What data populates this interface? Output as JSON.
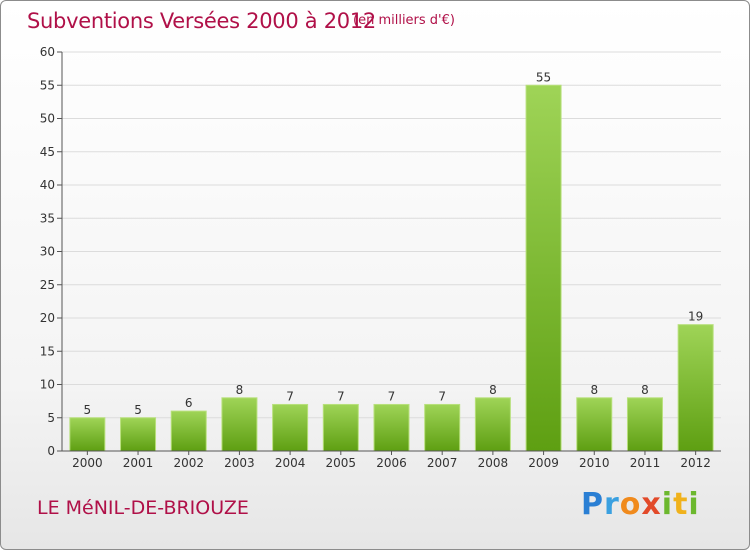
{
  "header": {
    "title": "Subventions Versées 2000 à 2012",
    "subtitle": "(en milliers d'€)"
  },
  "footer": {
    "place": "LE MéNIL-DE-BRIOUZE",
    "logo_text": "Proxiti"
  },
  "colors": {
    "bar_top": "#9fd457",
    "bar_bottom": "#5e9f12",
    "title": "#b01048"
  },
  "chart_data": {
    "type": "bar",
    "title": "Subventions Versées 2000 à 2012",
    "subtitle": "(en milliers d'€)",
    "xlabel": "",
    "ylabel": "",
    "categories": [
      "2000",
      "2001",
      "2002",
      "2003",
      "2004",
      "2005",
      "2006",
      "2007",
      "2008",
      "2009",
      "2010",
      "2011",
      "2012"
    ],
    "values": [
      5,
      5,
      6,
      8,
      7,
      7,
      7,
      7,
      8,
      55,
      8,
      8,
      19
    ],
    "value_labels": [
      "5",
      "5",
      "6",
      "8",
      "7",
      "7",
      "7",
      "7",
      "8",
      "55",
      "8",
      "8",
      "19"
    ],
    "ylim": [
      0,
      60
    ],
    "yticks": [
      0,
      5,
      10,
      15,
      20,
      25,
      30,
      35,
      40,
      45,
      50,
      55,
      60
    ],
    "ytick_labels": [
      "0",
      "5",
      "10",
      "15",
      "20",
      "25",
      "30",
      "35",
      "40",
      "45",
      "50",
      "55",
      "60"
    ],
    "grid": true,
    "legend": "none"
  }
}
